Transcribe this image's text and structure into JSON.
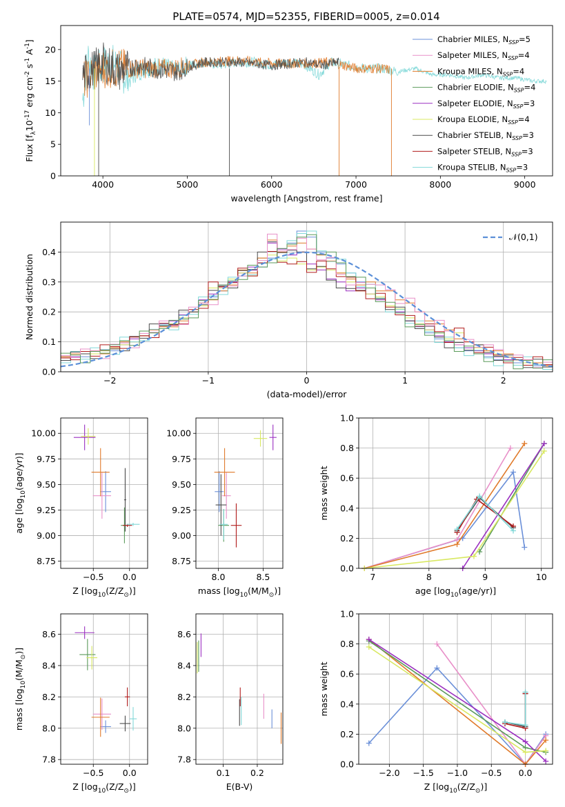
{
  "figure_title": "PLATE=0574, MJD=52355, FIBERID=0005, z=0.014",
  "series_colors": [
    "#6a8fd8",
    "#e88fc8",
    "#e07a2a",
    "#5a9a5a",
    "#9a2fc0",
    "#d8e860",
    "#4a4a4a",
    "#b01a1a",
    "#80d8d8"
  ],
  "chart_data": [
    {
      "id": "spectrum",
      "type": "line",
      "title": "PLATE=0574, MJD=52355, FIBERID=0005, z=0.014",
      "xlabel": "wavelength [Angstrom, rest frame]",
      "ylabel": "Flux [f$_\\lambda$10$^{-17}$ erg cm$^{-2}$ s$^{-1}$ A$^{-1}$]",
      "xlim": [
        3500,
        9330
      ],
      "ylim": [
        0,
        23.8
      ],
      "xticks": [
        "4000",
        "5000",
        "6000",
        "7000",
        "8000",
        "9000"
      ],
      "yticks": [
        "0",
        "5",
        "10",
        "15",
        "20"
      ],
      "legend_position": "upper right",
      "legend": [
        {
          "name": "Chabrier MILES",
          "n": "5"
        },
        {
          "name": "Salpeter MILES",
          "n": "4"
        },
        {
          "name": "Kroupa MILES",
          "n": "4"
        },
        {
          "name": "Chabrier ELODIE",
          "n": "4"
        },
        {
          "name": "Salpeter ELODIE",
          "n": "3"
        },
        {
          "name": "Kroupa ELODIE",
          "n": "4"
        },
        {
          "name": "Chabrier STELIB",
          "n": "3"
        },
        {
          "name": "Salpeter STELIB",
          "n": "3"
        },
        {
          "name": "Kroupa STELIB",
          "n": "3"
        }
      ],
      "series": [
        {
          "color_index": 8,
          "x": [
            3760,
            3820,
            3900,
            4000,
            4100,
            4200,
            4300,
            4400,
            4500,
            4700,
            4860,
            5000,
            5200,
            5400,
            5600,
            5800,
            6000,
            6200,
            6400,
            6563,
            6700,
            6900,
            7100,
            7300,
            7500,
            7700,
            7900,
            8100,
            8300,
            8500,
            8700,
            8900,
            9100,
            9260
          ],
          "y": [
            12,
            19,
            16,
            17.5,
            18,
            17,
            15,
            16.5,
            17,
            17.5,
            16.5,
            17.5,
            18,
            17.5,
            18,
            18,
            17.5,
            18,
            17.5,
            16,
            18,
            17.5,
            17,
            17,
            16.5,
            17,
            16,
            16,
            15.5,
            16,
            15.5,
            15.5,
            15,
            15
          ]
        },
        {
          "color_index": 2,
          "x": [
            3760,
            4000,
            4400,
            4860,
            5200,
            5600,
            6000,
            6400,
            6700,
            7000,
            7300,
            7400
          ],
          "y": [
            15,
            17,
            17,
            17,
            18,
            18.3,
            17.8,
            17.8,
            18,
            17,
            17,
            16.8
          ]
        },
        {
          "color_index": 6,
          "x": [
            3760,
            3900,
            4000,
            4200,
            4400,
            4600,
            4860,
            5200,
            5600,
            6000,
            6400,
            6600,
            6800
          ],
          "y": [
            16,
            17,
            18,
            16.5,
            17.5,
            17,
            16.5,
            18,
            18,
            17.5,
            18,
            17.5,
            18
          ]
        }
      ]
    },
    {
      "id": "residuals",
      "type": "line",
      "xlabel": "(data-model)/error",
      "ylabel": "Normed distribution",
      "xlim": [
        -2.5,
        2.5
      ],
      "ylim": [
        0,
        0.5
      ],
      "xticks": [
        "−2",
        "−1",
        "0",
        "1",
        "2"
      ],
      "yticks": [
        "0.0",
        "0.1",
        "0.2",
        "0.3",
        "0.4"
      ],
      "legend": "$\\mathcal{N}(0,1)$",
      "legend_position": "upper right",
      "series": [
        {
          "color_index": 0,
          "step_x0": -2.5,
          "bin_width": 0.1,
          "values": [
            0.05,
            0.06,
            0.05,
            0.06,
            0.07,
            0.07,
            0.1,
            0.1,
            0.12,
            0.13,
            0.16,
            0.16,
            0.18,
            0.2,
            0.23,
            0.25,
            0.27,
            0.3,
            0.32,
            0.34,
            0.35,
            0.38,
            0.4,
            0.43,
            0.47,
            0.45,
            0.4,
            0.38,
            0.36,
            0.33,
            0.3,
            0.28,
            0.25,
            0.22,
            0.2,
            0.17,
            0.15,
            0.13,
            0.11,
            0.1,
            0.08,
            0.07,
            0.06,
            0.05,
            0.04,
            0.04,
            0.03,
            0.03,
            0.02,
            0.02
          ]
        },
        {
          "color_index": 4,
          "step_x0": -2.5,
          "bin_width": 0.1,
          "values": [
            0.05,
            0.05,
            0.06,
            0.06,
            0.06,
            0.08,
            0.09,
            0.11,
            0.12,
            0.14,
            0.15,
            0.17,
            0.19,
            0.2,
            0.24,
            0.26,
            0.29,
            0.3,
            0.33,
            0.35,
            0.38,
            0.43,
            0.41,
            0.39,
            0.4,
            0.36,
            0.34,
            0.31,
            0.3,
            0.27,
            0.28,
            0.26,
            0.24,
            0.22,
            0.2,
            0.17,
            0.16,
            0.14,
            0.12,
            0.1,
            0.09,
            0.08,
            0.07,
            0.06,
            0.05,
            0.04,
            0.04,
            0.03,
            0.03,
            0.02
          ]
        },
        {
          "color_index": 5,
          "step_x0": -2.5,
          "bin_width": 0.1,
          "values": [
            0.05,
            0.06,
            0.06,
            0.06,
            0.07,
            0.08,
            0.09,
            0.1,
            0.12,
            0.13,
            0.15,
            0.16,
            0.18,
            0.2,
            0.22,
            0.28,
            0.28,
            0.31,
            0.33,
            0.32,
            0.38,
            0.39,
            0.37,
            0.38,
            0.36,
            0.34,
            0.35,
            0.34,
            0.33,
            0.3,
            0.27,
            0.26,
            0.25,
            0.22,
            0.21,
            0.18,
            0.16,
            0.14,
            0.13,
            0.11,
            0.13,
            0.1,
            0.08,
            0.07,
            0.06,
            0.05,
            0.04,
            0.03,
            0.03,
            0.02
          ]
        },
        {
          "color_index": 2,
          "step_x0": -2.5,
          "bin_width": 0.1,
          "values": [
            0.05,
            0.06,
            0.06,
            0.07,
            0.06,
            0.08,
            0.1,
            0.1,
            0.12,
            0.14,
            0.15,
            0.15,
            0.17,
            0.2,
            0.23,
            0.24,
            0.27,
            0.29,
            0.34,
            0.33,
            0.38,
            0.44,
            0.4,
            0.42,
            0.43,
            0.41,
            0.39,
            0.37,
            0.33,
            0.31,
            0.29,
            0.3,
            0.27,
            0.27,
            0.24,
            0.23,
            0.2,
            0.17,
            0.16,
            0.14,
            0.11,
            0.1,
            0.09,
            0.07,
            0.07,
            0.06,
            0.04,
            0.04,
            0.03,
            0.02
          ]
        }
      ],
      "gaussian": {
        "mu": 0,
        "sigma": 1
      }
    },
    {
      "id": "age_vs_Z",
      "type": "scatter",
      "xlabel": "Z [log$_{10}$(Z/Z$_\\odot$)]",
      "ylabel": "age  [log$_{10}$(age/yr)]",
      "xlim": [
        -0.95,
        0.25
      ],
      "ylim": [
        8.68,
        10.15
      ],
      "xticks": [
        "−0.5",
        "0.0"
      ],
      "yticks": [
        "8.75",
        "9.00",
        "9.25",
        "9.50",
        "9.75",
        "10.00"
      ],
      "points": [
        {
          "c": 0,
          "x": -0.33,
          "y": 9.43,
          "xe": 0.15,
          "ye": 0.4
        },
        {
          "c": 1,
          "x": -0.38,
          "y": 9.39,
          "xe": 0.25,
          "ye": 0.45
        },
        {
          "c": 2,
          "x": -0.4,
          "y": 9.62,
          "xe": 0.25,
          "ye": 0.47
        },
        {
          "c": 3,
          "x": -0.07,
          "y": 9.1,
          "xe": 0.1,
          "ye": 0.35
        },
        {
          "c": 4,
          "x": -0.62,
          "y": 9.96,
          "xe": 0.3,
          "ye": 0.25
        },
        {
          "c": 5,
          "x": -0.57,
          "y": 9.97,
          "xe": 0.2,
          "ye": 0.16
        },
        {
          "c": 6,
          "x": -0.06,
          "y": 9.35,
          "xe": 0.03,
          "ye": 0.62
        },
        {
          "c": 7,
          "x": -0.03,
          "y": 9.1,
          "xe": 0.13,
          "ye": 0.03
        },
        {
          "c": 8,
          "x": 0.05,
          "y": 9.11,
          "xe": 0.18,
          "ye": 0.03
        }
      ]
    },
    {
      "id": "age_vs_mass",
      "type": "scatter",
      "xlabel": "mass [log$_{10}$(M/M$_\\odot$)]",
      "ylabel": "",
      "xlim": [
        7.75,
        8.72
      ],
      "ylim": [
        8.68,
        10.15
      ],
      "xticks": [
        "8.0",
        "8.5"
      ],
      "yticks": [
        "8.75",
        "9.00",
        "9.25",
        "9.50",
        "9.75",
        "10.00"
      ],
      "points": [
        {
          "c": 0,
          "x": 8.01,
          "y": 9.43,
          "xe": 0.1,
          "ye": 0.4
        },
        {
          "c": 1,
          "x": 8.09,
          "y": 9.39,
          "xe": 0.1,
          "ye": 0.45
        },
        {
          "c": 2,
          "x": 8.07,
          "y": 9.62,
          "xe": 0.23,
          "ye": 0.47
        },
        {
          "c": 3,
          "x": 8.06,
          "y": 9.1,
          "xe": 0.12,
          "ye": 0.32
        },
        {
          "c": 4,
          "x": 8.61,
          "y": 9.96,
          "xe": 0.08,
          "ye": 0.25
        },
        {
          "c": 5,
          "x": 8.47,
          "y": 9.95,
          "xe": 0.15,
          "ye": 0.16
        },
        {
          "c": 6,
          "x": 8.03,
          "y": 9.3,
          "xe": 0.12,
          "ye": 0.6
        },
        {
          "c": 7,
          "x": 8.2,
          "y": 9.1,
          "xe": 0.12,
          "ye": 0.43
        },
        {
          "c": 8,
          "x": 8.06,
          "y": 9.11,
          "xe": 0.09,
          "ye": 0.3
        }
      ]
    },
    {
      "id": "weight_vs_age",
      "type": "line",
      "xlabel": "age  [log$_{10}$(age/yr)]",
      "ylabel": "mass weight",
      "xlim": [
        6.75,
        10.2
      ],
      "ylim": [
        0,
        1.0
      ],
      "xticks": [
        "7",
        "8",
        "9",
        "10"
      ],
      "yticks": [
        "0.0",
        "0.2",
        "0.4",
        "0.6",
        "0.8",
        "1.0"
      ],
      "series": [
        {
          "c": 0,
          "x": [
            6.85,
            8.6,
            9.5,
            9.7
          ],
          "y": [
            0.0,
            0.2,
            0.64,
            0.14
          ]
        },
        {
          "c": 1,
          "x": [
            6.85,
            8.5,
            9.45
          ],
          "y": [
            0.0,
            0.19,
            0.8
          ]
        },
        {
          "c": 2,
          "x": [
            6.85,
            8.5,
            9.7
          ],
          "y": [
            0.0,
            0.16,
            0.83
          ]
        },
        {
          "c": 3,
          "x": [
            8.9,
            10.05
          ],
          "y": [
            0.11,
            0.83
          ]
        },
        {
          "c": 4,
          "x": [
            8.6,
            10.05
          ],
          "y": [
            0.0,
            0.83
          ]
        },
        {
          "c": 5,
          "x": [
            6.85,
            8.8,
            10.05
          ],
          "y": [
            0.0,
            0.08,
            0.78
          ]
        },
        {
          "c": 6,
          "x": [
            8.5,
            8.9,
            9.5
          ],
          "y": [
            0.25,
            0.47,
            0.27
          ]
        },
        {
          "c": 7,
          "x": [
            8.5,
            8.85,
            9.5
          ],
          "y": [
            0.24,
            0.46,
            0.28
          ]
        },
        {
          "c": 8,
          "x": [
            8.5,
            8.9,
            9.5
          ],
          "y": [
            0.26,
            0.48,
            0.25
          ]
        }
      ]
    },
    {
      "id": "mass_vs_Z",
      "type": "scatter",
      "xlabel": "Z [log$_{10}$(Z/Z$_\\odot$)]",
      "ylabel": "mass [log$_{10}$(M/M$_\\odot$)]",
      "xlim": [
        -0.95,
        0.25
      ],
      "ylim": [
        7.77,
        8.73
      ],
      "xticks": [
        "−0.5",
        "0.0"
      ],
      "yticks": [
        "7.8",
        "8.0",
        "8.2",
        "8.4",
        "8.6"
      ],
      "points": [
        {
          "c": 0,
          "x": -0.33,
          "y": 8.01,
          "xe": 0.15,
          "ye": 0.08
        },
        {
          "c": 1,
          "x": -0.38,
          "y": 8.09,
          "xe": 0.25,
          "ye": 0.2
        },
        {
          "c": 2,
          "x": -0.4,
          "y": 8.07,
          "xe": 0.25,
          "ye": 0.25
        },
        {
          "c": 3,
          "x": -0.58,
          "y": 8.47,
          "xe": 0.22,
          "ye": 0.2
        },
        {
          "c": 4,
          "x": -0.62,
          "y": 8.61,
          "xe": 0.27,
          "ye": 0.08
        },
        {
          "c": 5,
          "x": -0.52,
          "y": 8.45,
          "xe": 0.15,
          "ye": 0.15
        },
        {
          "c": 6,
          "x": -0.06,
          "y": 8.03,
          "xe": 0.15,
          "ye": 0.1
        },
        {
          "c": 7,
          "x": -0.03,
          "y": 8.2,
          "xe": 0.07,
          "ye": 0.12
        },
        {
          "c": 8,
          "x": 0.05,
          "y": 8.06,
          "xe": 0.1,
          "ye": 0.15
        }
      ]
    },
    {
      "id": "mass_vs_ebv",
      "type": "scatter",
      "xlabel": "E(B-V)",
      "ylabel": "",
      "xlim": [
        0.02,
        0.275
      ],
      "ylim": [
        7.77,
        8.73
      ],
      "xticks": [
        "0.1",
        "0.2"
      ],
      "yticks": [
        "7.8",
        "8.0",
        "8.2",
        "8.4",
        "8.6"
      ],
      "points": [
        {
          "c": 0,
          "x": 0.243,
          "y": 8.06,
          "xe": 0,
          "ye": 0.12
        },
        {
          "c": 1,
          "x": 0.219,
          "y": 8.14,
          "xe": 0,
          "ye": 0.16
        },
        {
          "c": 2,
          "x": 0.27,
          "y": 8.0,
          "xe": 0,
          "ye": 0.2
        },
        {
          "c": 3,
          "x": 0.028,
          "y": 8.46,
          "xe": 0,
          "ye": 0.2
        },
        {
          "c": 4,
          "x": 0.035,
          "y": 8.53,
          "xe": 0,
          "ye": 0.15
        },
        {
          "c": 5,
          "x": 0.024,
          "y": 8.45,
          "xe": 0,
          "ye": 0.2
        },
        {
          "c": 6,
          "x": 0.148,
          "y": 8.1,
          "xe": 0,
          "ye": 0.17
        },
        {
          "c": 7,
          "x": 0.15,
          "y": 8.2,
          "xe": 0,
          "ye": 0.12
        },
        {
          "c": 8,
          "x": 0.153,
          "y": 8.11,
          "xe": 0,
          "ye": 0.18
        }
      ]
    },
    {
      "id": "weight_vs_Z",
      "type": "line",
      "xlabel": "Z [log$_{10}$(Z/Z$_\\odot$)]",
      "ylabel": "mass weight",
      "xlim": [
        -2.45,
        0.4
      ],
      "ylim": [
        0,
        1.0
      ],
      "xticks": [
        "−2.0",
        "−1.5",
        "−1.0",
        "−0.5",
        "0.0"
      ],
      "yticks": [
        "0.0",
        "0.2",
        "0.4",
        "0.6",
        "0.8",
        "1.0"
      ],
      "series": [
        {
          "c": 0,
          "x": [
            -2.3,
            -1.3,
            0.0,
            0.3
          ],
          "y": [
            0.14,
            0.64,
            0.0,
            0.2
          ]
        },
        {
          "c": 1,
          "x": [
            -1.3,
            0.0,
            0.3
          ],
          "y": [
            0.8,
            0.0,
            0.19
          ]
        },
        {
          "c": 2,
          "x": [
            -2.3,
            0.0,
            0.3
          ],
          "y": [
            0.83,
            0.0,
            0.16
          ]
        },
        {
          "c": 3,
          "x": [
            -2.3,
            0.0,
            0.3
          ],
          "y": [
            0.82,
            0.11,
            0.08
          ]
        },
        {
          "c": 4,
          "x": [
            -2.3,
            0.0,
            0.3
          ],
          "y": [
            0.83,
            0.15,
            0.02
          ]
        },
        {
          "c": 5,
          "x": [
            -2.3,
            0.0,
            0.3
          ],
          "y": [
            0.78,
            0.08,
            0.09
          ]
        },
        {
          "c": 6,
          "x": [
            -0.3,
            0.0,
            0.0
          ],
          "y": [
            0.28,
            0.25,
            0.47
          ]
        },
        {
          "c": 7,
          "x": [
            -0.3,
            0.0,
            0.0
          ],
          "y": [
            0.27,
            0.24,
            0.47
          ]
        },
        {
          "c": 8,
          "x": [
            -0.3,
            0.0,
            0.0
          ],
          "y": [
            0.28,
            0.26,
            0.48
          ]
        }
      ]
    }
  ]
}
